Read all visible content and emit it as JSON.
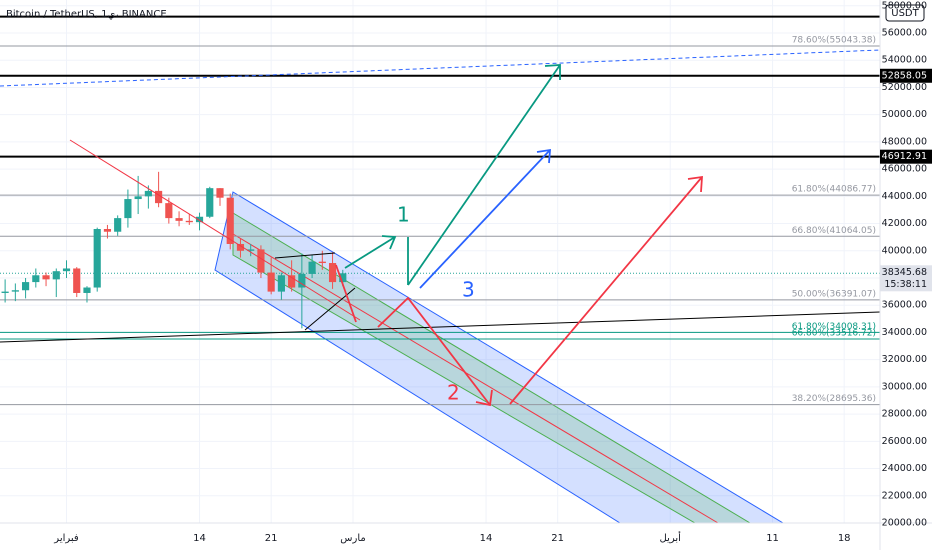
{
  "chart_data": {
    "type": "candlestick",
    "title": "Bitcoin / TetherUS, 1ي، BINANCE",
    "currency": "USDT",
    "categories": [
      null,
      null,
      null,
      null,
      null,
      null,
      "فبراير",
      null,
      null,
      null,
      null,
      null,
      null,
      null,
      null,
      null,
      null,
      null,
      null,
      "14",
      null,
      null,
      null,
      null,
      null,
      null,
      "21",
      null,
      null,
      null,
      null,
      null,
      null,
      null,
      "مارس",
      null,
      null,
      null,
      null,
      null,
      null,
      null,
      null,
      null,
      null,
      null,
      null,
      "14",
      null,
      null,
      null,
      null,
      null,
      null,
      "21",
      null,
      null,
      null,
      null,
      null,
      null,
      null,
      null,
      null,
      null,
      "أبريل",
      null,
      null,
      null,
      null,
      null,
      null,
      null,
      null,
      null,
      "11",
      null,
      null,
      null,
      null,
      null,
      null,
      "18",
      null,
      null,
      null
    ],
    "open": [
      36900,
      37000,
      37100,
      37700,
      38200,
      37900,
      38500,
      38700,
      36900,
      37300,
      41600,
      41400,
      42400,
      43800,
      44000,
      44400,
      43500,
      42400,
      42200,
      42100,
      42500,
      44600,
      43900,
      40500,
      40000,
      40100,
      38400,
      37000,
      38200,
      37300,
      38300,
      39200,
      39100,
      37700,
      null,
      null,
      null,
      null,
      null,
      null,
      null,
      null,
      null,
      null,
      null,
      null,
      null,
      null,
      null,
      null,
      null,
      null,
      null,
      null,
      null,
      null,
      null,
      null,
      null,
      null,
      null,
      null,
      null,
      null,
      null,
      null,
      null,
      null,
      null,
      null,
      null,
      null,
      null,
      null,
      null,
      null,
      null,
      null,
      null,
      null,
      null,
      null,
      null,
      null,
      null,
      null
    ],
    "high": [
      37900,
      37600,
      38000,
      38700,
      38400,
      38700,
      39300,
      38800,
      37400,
      41700,
      41900,
      42600,
      44500,
      45500,
      44800,
      45800,
      43900,
      42900,
      42700,
      42800,
      44700,
      44600,
      44200,
      40900,
      40500,
      40400,
      39500,
      38400,
      39300,
      39800,
      39700,
      40000,
      39900,
      38600,
      null,
      null,
      null,
      null,
      null,
      null,
      null,
      null,
      null,
      null,
      null,
      null,
      null,
      null,
      null,
      null,
      null,
      null,
      null,
      null,
      null,
      null,
      null,
      null,
      null,
      null,
      null,
      null,
      null,
      null,
      null,
      null,
      null,
      null,
      null,
      null,
      null,
      null,
      null,
      null,
      null,
      null,
      null,
      null,
      null,
      null,
      null,
      null,
      null,
      null,
      null,
      null
    ],
    "low": [
      36200,
      36300,
      36500,
      37300,
      37400,
      36600,
      38000,
      36600,
      36200,
      37000,
      40900,
      41100,
      41700,
      42700,
      43100,
      43200,
      42000,
      41800,
      41900,
      41500,
      42400,
      43300,
      40100,
      39500,
      39600,
      38000,
      36800,
      36400,
      37000,
      34300,
      38000,
      38600,
      37200,
      37400,
      null,
      null,
      null,
      null,
      null,
      null,
      null,
      null,
      null,
      null,
      null,
      null,
      null,
      null,
      null,
      null,
      null,
      null,
      null,
      null,
      null,
      null,
      null,
      null,
      null,
      null,
      null,
      null,
      null,
      null,
      null,
      null,
      null,
      null,
      null,
      null,
      null,
      null,
      null,
      null,
      null,
      null,
      null,
      null,
      null,
      null,
      null,
      null,
      null,
      null,
      null,
      null
    ],
    "close": [
      37000,
      37100,
      37700,
      38200,
      37900,
      38500,
      38700,
      36900,
      37300,
      41600,
      41400,
      42400,
      43800,
      44000,
      44400,
      43500,
      42400,
      42200,
      42100,
      42500,
      44600,
      43900,
      40500,
      40000,
      40100,
      38400,
      37000,
      38200,
      37300,
      38300,
      39200,
      39100,
      37700,
      38345.68,
      null,
      null,
      null,
      null,
      null,
      null,
      null,
      null,
      null,
      null,
      null,
      null,
      null,
      null,
      null,
      null,
      null,
      null,
      null,
      null,
      null,
      null,
      null,
      null,
      null,
      null,
      null,
      null,
      null,
      null,
      null,
      null,
      null,
      null,
      null,
      null,
      null,
      null,
      null,
      null,
      null,
      null,
      null,
      null,
      null,
      null,
      null,
      null,
      null,
      null,
      null,
      null
    ],
    "up_color": "#26a69a",
    "down_color": "#ef5350",
    "ylim": [
      20000,
      58000
    ],
    "yticks": [
      {
        "value": 20000,
        "label": "20000.00"
      },
      {
        "value": 22000,
        "label": "22000.00"
      },
      {
        "value": 24000,
        "label": "24000.00"
      },
      {
        "value": 26000,
        "label": "26000.00"
      },
      {
        "value": 28000,
        "label": "28000.00"
      },
      {
        "value": 30000,
        "label": "30000.00"
      },
      {
        "value": 32000,
        "label": "32000.00"
      },
      {
        "value": 34000,
        "label": "34000.00"
      },
      {
        "value": 36000,
        "label": "36000.00"
      },
      {
        "value": 38000,
        "label": "38000.00"
      },
      {
        "value": 40000,
        "label": "40000.00"
      },
      {
        "value": 42000,
        "label": "42000.00"
      },
      {
        "value": 44000,
        "label": "44000.00"
      },
      {
        "value": 46000,
        "label": "46000.00"
      },
      {
        "value": 48000,
        "label": "48000.00"
      },
      {
        "value": 50000,
        "label": "50000.00"
      },
      {
        "value": 52000,
        "label": "52000.00"
      },
      {
        "value": 54000,
        "label": "54000.00"
      },
      {
        "value": 56000,
        "label": "56000.00"
      },
      {
        "value": 58000,
        "label": "58000.00"
      }
    ],
    "grid": true,
    "levels": [
      {
        "value": 57200,
        "color": "#000000"
      },
      {
        "value": 55043.38,
        "label": "78.60%(55043.38)",
        "color": "#9598a1"
      },
      {
        "value": 52858.05,
        "label": "52858.05",
        "color": "#000000"
      },
      {
        "value": 46912.91,
        "label": "46912.91",
        "color": "#000000"
      },
      {
        "value": 44086.77,
        "label": "61.80%(44086.77)",
        "color": "#9598a1"
      },
      {
        "value": 41064.05,
        "label": "66.80%(41064.05)",
        "color": "#9598a1"
      },
      {
        "value": 36391.07,
        "label": "50.00%(36391.07)",
        "color": "#9598a1"
      },
      {
        "value": 34008.31,
        "label": "61.80%(34008.31)",
        "color": "#089981"
      },
      {
        "value": 33516.72,
        "label": "66.80%(33516.72)",
        "color": "#089981"
      },
      {
        "value": 28695.36,
        "label": "38.20%(28695.36)",
        "color": "#9598a1"
      }
    ],
    "last_price": {
      "value": 38345.68,
      "label": "38345.68",
      "countdown": "15:38:11"
    },
    "annotations": [
      {
        "text": "1",
        "color": "#089981"
      },
      {
        "text": "2",
        "color": "#f23645"
      },
      {
        "text": "3",
        "color": "#2962ff"
      }
    ]
  }
}
